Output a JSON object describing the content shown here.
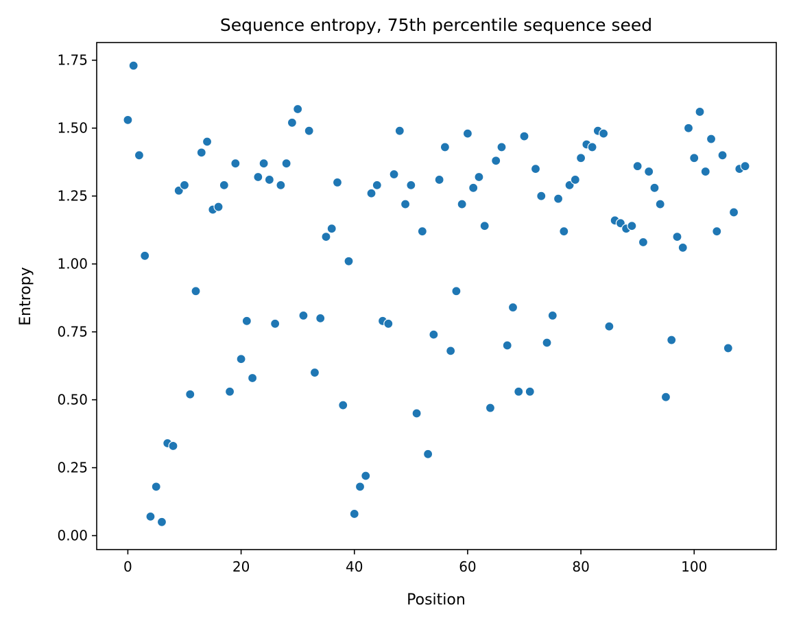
{
  "chart_data": {
    "type": "scatter",
    "title": "Sequence entropy, 75th percentile sequence seed",
    "xlabel": "Position",
    "ylabel": "Entropy",
    "xlim": [
      -5.5,
      114.5
    ],
    "ylim": [
      -0.0515,
      1.815
    ],
    "xticks": [
      0,
      20,
      40,
      60,
      80,
      100
    ],
    "xtick_labels": [
      "0",
      "20",
      "40",
      "60",
      "80",
      "100"
    ],
    "yticks": [
      0.0,
      0.25,
      0.5,
      0.75,
      1.0,
      1.25,
      1.5,
      1.75
    ],
    "ytick_labels": [
      "0.00",
      "0.25",
      "0.50",
      "0.75",
      "1.00",
      "1.25",
      "1.50",
      "1.75"
    ],
    "grid": false,
    "legend": "none",
    "marker_color": "#1f77b4",
    "x": [
      0,
      1,
      2,
      3,
      4,
      5,
      6,
      7,
      8,
      9,
      10,
      11,
      12,
      13,
      14,
      15,
      16,
      17,
      18,
      19,
      20,
      21,
      22,
      23,
      24,
      25,
      26,
      27,
      28,
      29,
      30,
      31,
      32,
      33,
      34,
      35,
      36,
      37,
      38,
      39,
      40,
      41,
      42,
      43,
      44,
      45,
      46,
      47,
      48,
      49,
      50,
      51,
      52,
      53,
      54,
      55,
      56,
      57,
      58,
      59,
      60,
      61,
      62,
      63,
      64,
      65,
      66,
      67,
      68,
      69,
      70,
      71,
      72,
      73,
      74,
      75,
      76,
      77,
      78,
      79,
      80,
      81,
      82,
      83,
      84,
      85,
      86,
      87,
      88,
      89,
      90,
      91,
      92,
      93,
      94,
      95,
      96,
      97,
      98,
      99,
      100,
      101,
      102,
      103,
      104,
      105,
      106,
      107,
      108,
      109
    ],
    "y": [
      1.53,
      1.73,
      1.4,
      1.03,
      0.07,
      0.18,
      0.05,
      0.34,
      0.33,
      1.27,
      1.29,
      0.52,
      0.9,
      1.41,
      1.45,
      1.2,
      1.21,
      1.29,
      0.53,
      1.37,
      0.65,
      0.79,
      0.58,
      1.32,
      1.37,
      1.31,
      0.78,
      1.29,
      1.37,
      1.52,
      1.57,
      0.81,
      1.49,
      0.6,
      0.8,
      1.1,
      1.13,
      1.3,
      0.48,
      1.01,
      0.08,
      0.18,
      0.22,
      1.26,
      1.29,
      0.79,
      0.78,
      1.33,
      1.49,
      1.22,
      1.29,
      0.45,
      1.12,
      0.3,
      0.74,
      1.31,
      1.43,
      0.68,
      0.9,
      1.22,
      1.48,
      1.28,
      1.32,
      1.14,
      0.47,
      1.38,
      1.43,
      0.7,
      0.84,
      0.53,
      1.47,
      0.53,
      1.35,
      1.25,
      0.71,
      0.81,
      1.24,
      1.12,
      1.29,
      1.31,
      1.39,
      1.44,
      1.43,
      1.49,
      1.48,
      0.77,
      1.16,
      1.15,
      1.13,
      1.14,
      1.36,
      1.08,
      1.34,
      1.28,
      1.22,
      0.51,
      0.72,
      1.1,
      1.06,
      1.5,
      1.39,
      1.56,
      1.34,
      1.46,
      1.12,
      1.4,
      0.69,
      1.19,
      1.35,
      1.36
    ]
  }
}
